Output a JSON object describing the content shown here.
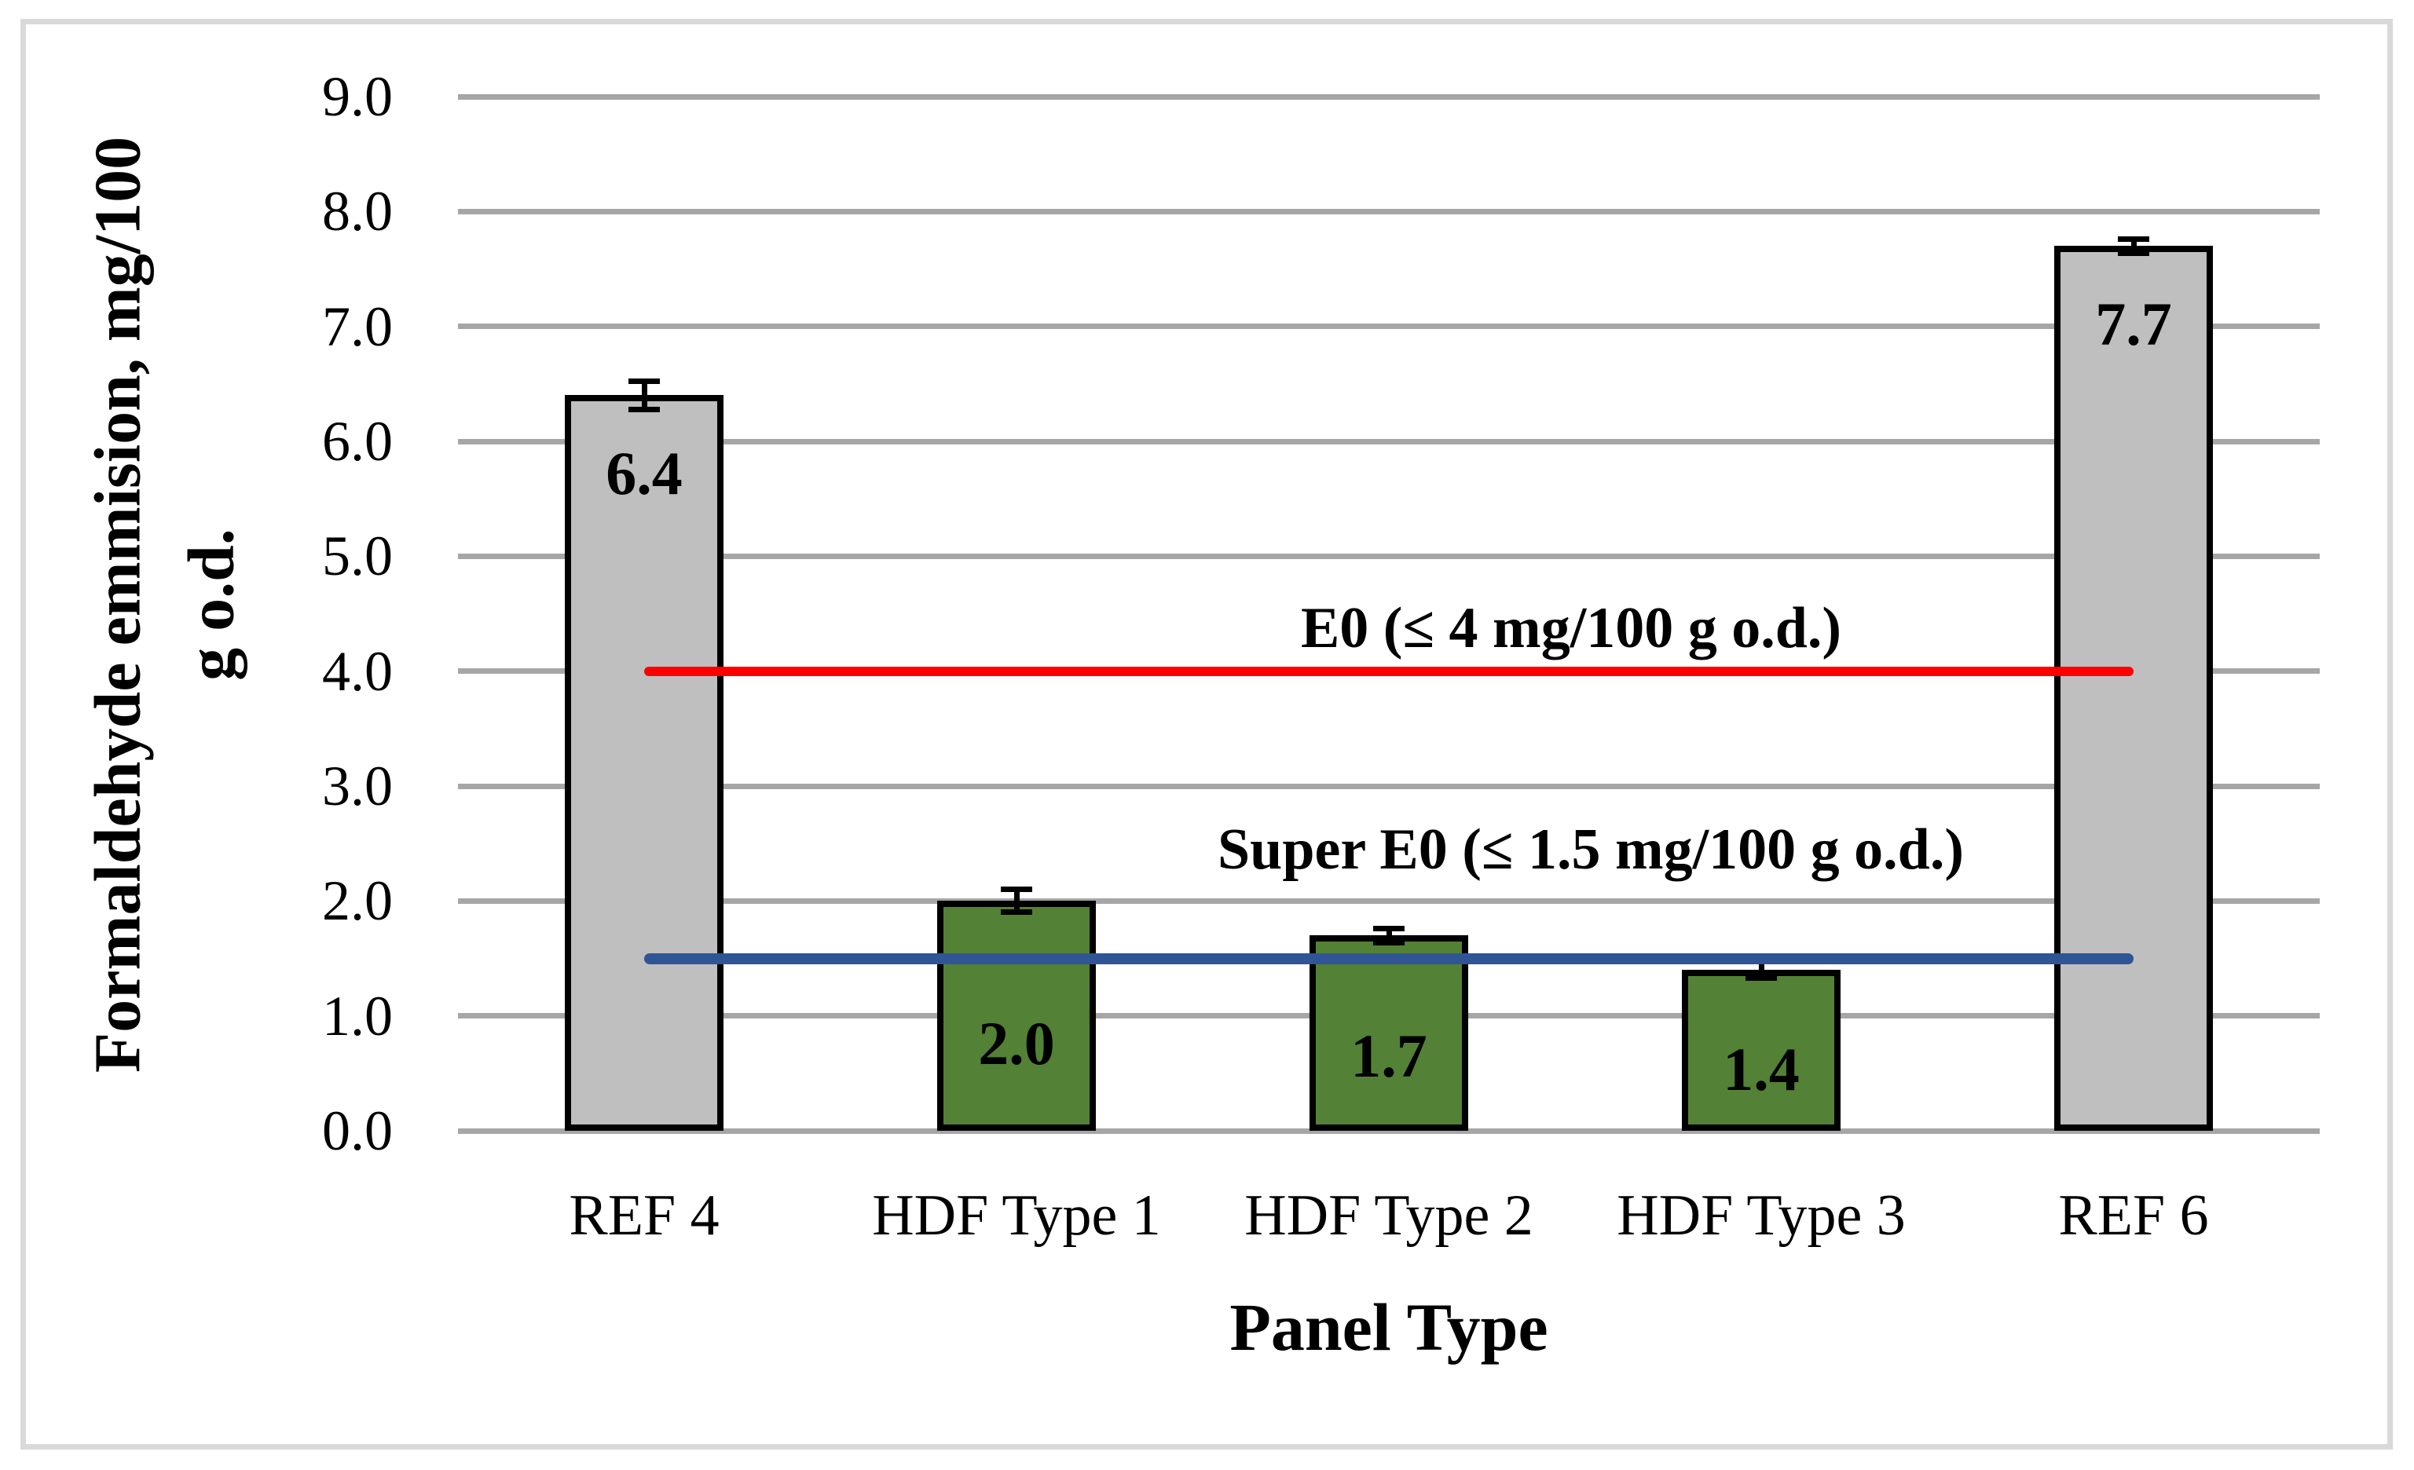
{
  "chart_data": {
    "type": "bar",
    "title": "",
    "xlabel": "Panel Type",
    "ylabel_line1": "Formaldehyde emmision, mg/100",
    "ylabel_line2": "g o.d.",
    "categories": [
      "REF 4",
      "HDF Type 1",
      "HDF Type 2",
      "HDF Type 3",
      "REF 6"
    ],
    "values": [
      6.4,
      2.0,
      1.7,
      1.4,
      7.7
    ],
    "value_labels": [
      "6.4",
      "2.0",
      "1.7",
      "1.4",
      "7.7"
    ],
    "error_bars": [
      0.12,
      0.1,
      0.06,
      0.07,
      0.06
    ],
    "bar_colors": [
      "#BFBFBF",
      "#538135",
      "#538135",
      "#538135",
      "#BFBFBF"
    ],
    "bar_border_color": "#000000",
    "ylim": [
      0.0,
      9.0
    ],
    "ytick_step": 1.0,
    "ytick_labels": [
      "0.0",
      "1.0",
      "2.0",
      "3.0",
      "4.0",
      "5.0",
      "6.0",
      "7.0",
      "8.0",
      "9.0"
    ],
    "grid": "horizontal-major",
    "gridline_color": "#A6A6A6",
    "frame_border_color": "#D9D9D9",
    "legend_position": "none",
    "reference_lines": [
      {
        "label": "E0 (≤ 4 mg/100 g o.d.)",
        "value": 4.0,
        "color": "#FF0000"
      },
      {
        "label": "Super E0 (≤ 1.5 mg/100 g o.d.)",
        "value": 1.5,
        "color": "#2F5597"
      }
    ]
  }
}
